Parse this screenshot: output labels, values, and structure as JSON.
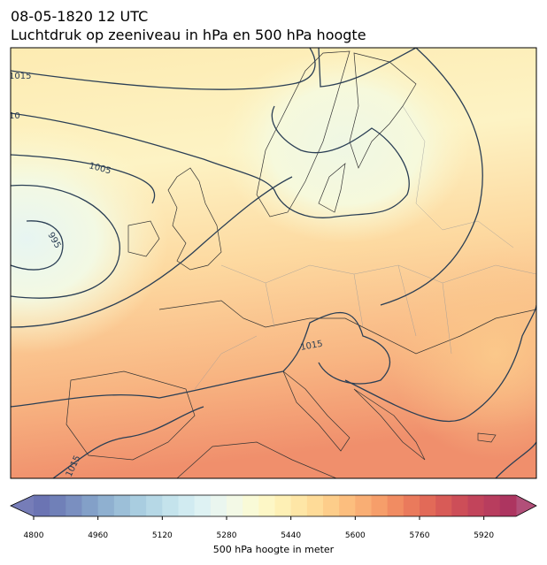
{
  "header": {
    "title_line1": "08-05-1820 12 UTC",
    "title_line2": "Luchtdruk op zeeniveau in hPa en 500 hPa hoogte"
  },
  "map": {
    "contour_labels": [
      "1015",
      "10",
      "1005",
      "995",
      "1015",
      "1015"
    ]
  },
  "colorbar": {
    "label": "500 hPa hoogte in meter",
    "lim": [
      4800,
      6000
    ],
    "ticks": [
      4800,
      4960,
      5120,
      5280,
      5440,
      5600,
      5760,
      5920
    ],
    "under_color": "#5e66ab",
    "over_color": "#a53061",
    "colors": [
      "#6b74b3",
      "#7080b8",
      "#7a8fc0",
      "#83a0c8",
      "#8fb0d0",
      "#9cbfd8",
      "#a9cde0",
      "#b6d8e6",
      "#c4e3ec",
      "#d1ebf1",
      "#def2f3",
      "#eaf6ef",
      "#f3f9e6",
      "#f9fad7",
      "#fdf7c6",
      "#fef0b5",
      "#fee6a6",
      "#fedb98",
      "#fdcd8a",
      "#fcbe7e",
      "#f9ae74",
      "#f69e6a",
      "#f18c62",
      "#ea7a5c",
      "#e26a58",
      "#d85b57",
      "#cd4e58",
      "#c2445b",
      "#b83d5e",
      "#ad3560"
    ]
  }
}
